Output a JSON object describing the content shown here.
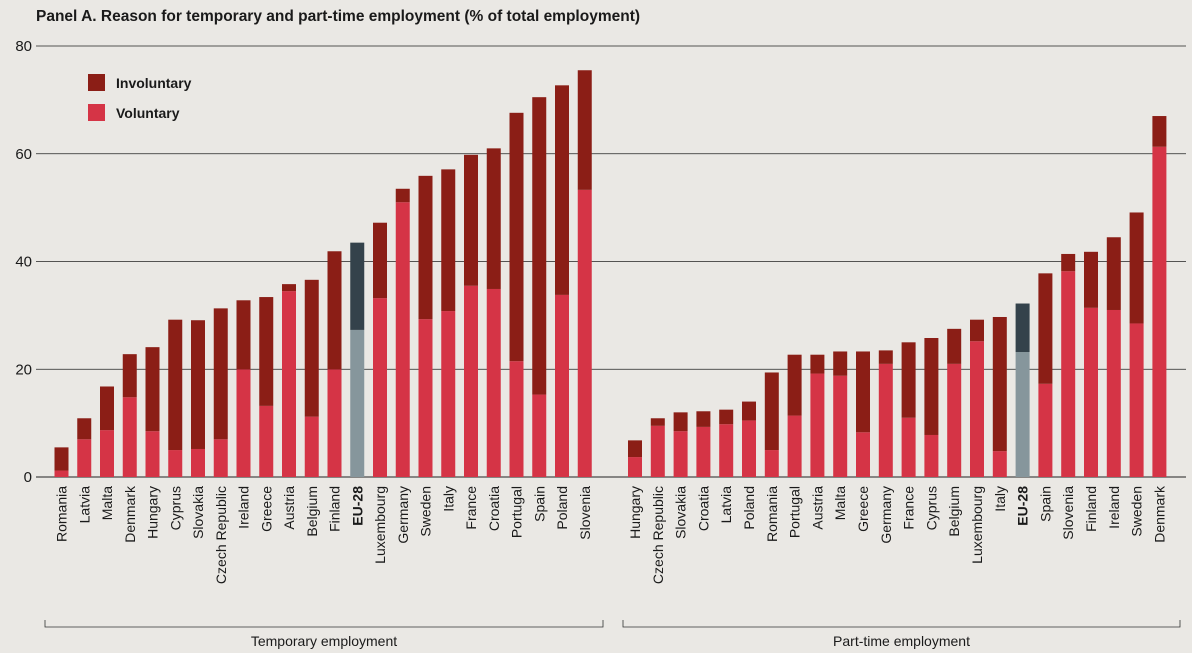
{
  "title": "Panel A.  Reason for temporary and part-time employment (% of total employment)",
  "colors": {
    "involuntary": "#8b1e16",
    "voluntary": "#d53446",
    "eu_involuntary": "#34424b",
    "eu_voluntary": "#86969c",
    "grid": "#222222",
    "background": "#eae8e4"
  },
  "chart_data": {
    "type": "bar",
    "stacked": true,
    "ylim": [
      0,
      80
    ],
    "yticks": [
      0,
      20,
      40,
      60,
      80
    ],
    "grid": true,
    "legend_position": "top-left",
    "legend": [
      "Involuntary",
      "Voluntary"
    ],
    "highlight_category": "EU-28",
    "groups": [
      {
        "label": "Temporary employment",
        "categories": [
          "Romania",
          "Latvia",
          "Malta",
          "Denmark",
          "Hungary",
          "Cyprus",
          "Slovakia",
          "Czech Republic",
          "Ireland",
          "Greece",
          "Austria",
          "Belgium",
          "Finland",
          "EU-28",
          "Luxembourg",
          "Germany",
          "Sweden",
          "Italy",
          "France",
          "Croatia",
          "Portugal",
          "Spain",
          "Poland",
          "Slovenia"
        ],
        "series": [
          {
            "name": "Voluntary",
            "values": [
              1.2,
              7.0,
              8.7,
              14.8,
              8.5,
              5.0,
              5.2,
              7.0,
              20.0,
              13.2,
              34.5,
              11.2,
              20.0,
              27.3,
              33.2,
              51.0,
              29.3,
              30.8,
              35.5,
              34.9,
              21.5,
              15.3,
              33.8,
              53.3
            ]
          },
          {
            "name": "Involuntary",
            "values": [
              4.3,
              3.9,
              8.1,
              8.0,
              15.6,
              24.2,
              23.9,
              24.3,
              12.8,
              20.2,
              1.3,
              25.4,
              21.9,
              16.2,
              14.0,
              2.5,
              26.6,
              26.3,
              24.3,
              26.1,
              46.1,
              55.2,
              38.9,
              22.2
            ]
          }
        ]
      },
      {
        "label": "Part-time employment",
        "categories": [
          "Hungary",
          "Czech Republic",
          "Slovakia",
          "Croatia",
          "Latvia",
          "Poland",
          "Romania",
          "Portugal",
          "Austria",
          "Malta",
          "Greece",
          "Germany",
          "France",
          "Cyprus",
          "Belgium",
          "Luxembourg",
          "Italy",
          "EU-28",
          "Spain",
          "Slovenia",
          "Finland",
          "Ireland",
          "Sweden",
          "Denmark"
        ],
        "series": [
          {
            "name": "Voluntary",
            "values": [
              3.7,
              9.5,
              8.5,
              9.3,
              9.8,
              10.5,
              5.0,
              11.4,
              19.2,
              18.8,
              8.3,
              21.0,
              11.0,
              7.8,
              21.0,
              25.2,
              4.8,
              23.2,
              17.3,
              38.2,
              31.4,
              31.0,
              28.5,
              61.3
            ]
          },
          {
            "name": "Involuntary",
            "values": [
              3.1,
              1.4,
              3.5,
              2.9,
              2.7,
              3.5,
              14.4,
              11.3,
              3.5,
              4.5,
              15.0,
              2.5,
              14.0,
              18.0,
              6.5,
              4.0,
              24.9,
              9.0,
              20.5,
              3.2,
              10.4,
              13.5,
              20.6,
              5.7
            ]
          }
        ]
      }
    ]
  }
}
